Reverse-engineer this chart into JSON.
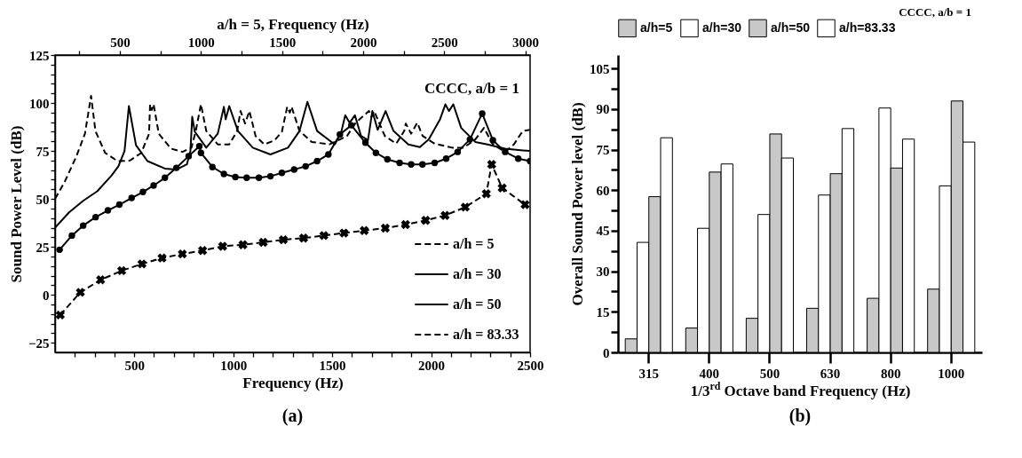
{
  "chart_data": [
    {
      "type": "line",
      "xlabel": "Frequency (Hz)",
      "ylabel": "Sound Power Level (dB)",
      "x2label": "a/h = 5, Frequency (Hz)",
      "xlim": [
        100,
        2500
      ],
      "xticks": [
        {
          "value": 200,
          "label": null
        },
        {
          "value": 300,
          "label": null
        },
        {
          "value": 400,
          "label": null
        },
        500,
        {
          "value": 600,
          "label": null
        },
        {
          "value": 700,
          "label": null
        },
        {
          "value": 800,
          "label": null
        },
        {
          "value": 900,
          "label": null
        },
        1000,
        {
          "value": 1100,
          "label": null
        },
        {
          "value": 1200,
          "label": null
        },
        {
          "value": 1300,
          "label": null
        },
        {
          "value": 1400,
          "label": null
        },
        1500,
        {
          "value": 1600,
          "label": null
        },
        {
          "value": 1700,
          "label": null
        },
        {
          "value": 1800,
          "label": null
        },
        {
          "value": 1900,
          "label": null
        },
        2000,
        {
          "value": 2100,
          "label": null
        },
        {
          "value": 2200,
          "label": null
        },
        {
          "value": 2300,
          "label": null
        },
        {
          "value": 2400,
          "label": null
        },
        2500
      ],
      "x2lim": [
        100,
        3030
      ],
      "x2ticks": [
        {
          "value": 250,
          "label": null
        },
        500,
        {
          "value": 750,
          "label": null
        },
        1000,
        {
          "value": 1250,
          "label": null
        },
        1500,
        {
          "value": 1750,
          "label": null
        },
        2000,
        {
          "value": 2250,
          "label": null
        },
        2500,
        {
          "value": 2750,
          "label": null
        },
        3000
      ],
      "ylim": [
        -30,
        125
      ],
      "yticks": [
        -25,
        {
          "value": -20,
          "label": null
        },
        {
          "value": -15,
          "label": null
        },
        {
          "value": -10,
          "label": null
        },
        {
          "value": -5,
          "label": null
        },
        0,
        {
          "value": 5,
          "label": null
        },
        {
          "value": 10,
          "label": null
        },
        {
          "value": 15,
          "label": null
        },
        {
          "value": 20,
          "label": null
        },
        25,
        {
          "value": 30,
          "label": null
        },
        {
          "value": 35,
          "label": null
        },
        {
          "value": 40,
          "label": null
        },
        {
          "value": 45,
          "label": null
        },
        50,
        {
          "value": 55,
          "label": null
        },
        {
          "value": 60,
          "label": null
        },
        {
          "value": 65,
          "label": null
        },
        {
          "value": 70,
          "label": null
        },
        75,
        {
          "value": 80,
          "label": null
        },
        {
          "value": 85,
          "label": null
        },
        {
          "value": 90,
          "label": null
        },
        {
          "value": 95,
          "label": null
        },
        100,
        {
          "value": 105,
          "label": null
        },
        {
          "value": 110,
          "label": null
        },
        {
          "value": 115,
          "label": null
        },
        {
          "value": 120,
          "label": null
        },
        125
      ],
      "legend": "bottom right",
      "annotations": [
        "CCCC, a/b = 1",
        "(a)"
      ],
      "series": [
        {
          "name": "a/h = 5",
          "color": "#000000",
          "axis": "x2",
          "line_style": "dashed",
          "marker": "cross",
          "x": [
            132,
            256,
            381,
            511,
            636,
            760,
            885,
            1010,
            1134,
            1259,
            1384,
            1508,
            1633,
            1758,
            1882,
            2007,
            2137,
            2262,
            2386,
            2506,
            2630,
            2760,
            2793,
            2858,
            2999
          ],
          "values": [
            -10.5,
            1.3,
            7.8,
            12.6,
            16.1,
            19.2,
            21.3,
            23.1,
            25.3,
            26.1,
            27.4,
            28.7,
            29.6,
            30.9,
            32.2,
            33.5,
            34.8,
            36.6,
            38.8,
            41.4,
            45.7,
            52.7,
            68,
            55.7,
            47
          ]
        },
        {
          "name": "a/h = 30",
          "color": "#000000",
          "line_style": "solid",
          "marker": "circle",
          "x": [
            123,
            185,
            242,
            305,
            367,
            425,
            487,
            544,
            598,
            655,
            713,
            775,
            829,
            837,
            895,
            953,
            1011,
            1068,
            1130,
            1188,
            1246,
            1308,
            1366,
            1424,
            1481,
            1539,
            1597,
            1668,
            1721,
            1779,
            1841,
            1899,
            1956,
            2018,
            2076,
            2134,
            2196,
            2258,
            2312,
            2374,
            2440,
            2500
          ],
          "values": [
            23.5,
            30.9,
            36.1,
            40.5,
            44,
            47,
            50.5,
            53.6,
            57,
            61,
            66.2,
            72.3,
            77.5,
            74,
            66.6,
            63,
            61.4,
            61,
            61,
            61.8,
            63.6,
            65.3,
            67,
            69.7,
            73.2,
            83.6,
            88.4,
            79.3,
            74,
            70.6,
            68.8,
            68,
            68,
            68.8,
            71,
            74.5,
            81,
            94.5,
            80.6,
            74.5,
            71,
            69.7
          ]
        },
        {
          "name": "a/h = 50",
          "color": "#000000",
          "line_style": "solid",
          "marker": "none",
          "x": [
            100,
            171,
            242,
            313,
            384,
            420,
            451,
            473,
            509,
            567,
            655,
            713,
            766,
            784,
            793,
            806,
            864,
            922,
            953,
            962,
            980,
            1024,
            1099,
            1188,
            1277,
            1335,
            1375,
            1424,
            1513,
            1544,
            1566,
            1588,
            1615,
            1646,
            1681,
            1703,
            1730,
            1770,
            1810,
            1885,
            1943,
            1988,
            2045,
            2072,
            2090,
            2112,
            2152,
            2223,
            2285,
            2374,
            2463,
            2500
          ],
          "values": [
            35,
            43,
            49,
            54,
            62,
            67,
            75,
            98.4,
            78,
            69.7,
            65.8,
            65.3,
            68,
            75,
            92.8,
            85,
            76.7,
            84,
            98,
            91.5,
            98.4,
            85.4,
            76.7,
            73.2,
            76.7,
            85.4,
            100.6,
            85.4,
            78.4,
            84,
            93.6,
            89.7,
            93.6,
            82.8,
            80.6,
            95.8,
            86,
            95.8,
            85.4,
            78.4,
            77,
            81,
            91.5,
            99.3,
            95.8,
            99.3,
            87,
            79.7,
            78.4,
            76.2,
            75.3,
            75
          ]
        },
        {
          "name": "a/h = 83.33",
          "color": "#000000",
          "line_style": "dashed",
          "marker": "none",
          "x": [
            100,
            149,
            207,
            251,
            282,
            304,
            353,
            416,
            478,
            536,
            575,
            580,
            589,
            598,
            624,
            686,
            744,
            789,
            811,
            837,
            864,
            922,
            980,
            1020,
            1037,
            1060,
            1082,
            1113,
            1157,
            1210,
            1246,
            1273,
            1286,
            1295,
            1335,
            1397,
            1486,
            1575,
            1619,
            1686,
            1699,
            1712,
            1766,
            1824,
            1864,
            1872,
            1899,
            1930,
            1957,
            2018,
            2107,
            2165,
            2223,
            2267,
            2312,
            2374,
            2418,
            2463,
            2500
          ],
          "values": [
            50,
            59,
            72,
            84,
            103.7,
            85.4,
            74,
            69.7,
            70,
            74,
            84,
            99.3,
            96.3,
            99.3,
            84,
            76.2,
            74.5,
            76.7,
            85.4,
            99.3,
            85.4,
            78.4,
            78.4,
            85.4,
            95.8,
            89.3,
            95.8,
            82.8,
            78.4,
            80.6,
            85,
            98,
            95,
            98,
            85.4,
            79.7,
            78.4,
            82.8,
            89.7,
            95.8,
            92.8,
            95.8,
            82.8,
            78.8,
            85.4,
            89.3,
            84,
            89.7,
            82.8,
            78.8,
            76.7,
            76.7,
            81,
            87,
            78.4,
            74.5,
            78.4,
            85.4,
            86
          ]
        }
      ]
    },
    {
      "type": "bar",
      "xlabel": "1/3$^{rd}$ Octave band Frequency (Hz)",
      "ylabel": "Overall Sound Power level (dB)",
      "categories": [
        "315",
        "400",
        "500",
        "630",
        "800",
        "1000"
      ],
      "ylim": [
        0,
        110
      ],
      "yticks": [
        0,
        {
          "value": 7.5,
          "label": null
        },
        15,
        {
          "value": 22.5,
          "label": null
        },
        30,
        {
          "value": 37.5,
          "label": null
        },
        45,
        {
          "value": 52.5,
          "label": null
        },
        60,
        {
          "value": 67.5,
          "label": null
        },
        75,
        {
          "value": 82.5,
          "label": null
        },
        90,
        {
          "value": 97.5,
          "label": null
        },
        105
      ],
      "legend": "top",
      "annotations": [
        "CCCC, a/b = 1",
        "(b)"
      ],
      "series": [
        {
          "name": "a/h=5",
          "color": "#c8c8c8",
          "values": [
            5,
            9,
            12.6,
            16.3,
            20,
            23.4
          ]
        },
        {
          "name": "a/h=30",
          "color": "#ffffff",
          "values": [
            40.7,
            45.9,
            51,
            58.2,
            90.4,
            61.6
          ]
        },
        {
          "name": "a/h=50",
          "color": "#c8c8c8",
          "values": [
            57.6,
            66.7,
            80.8,
            66.1,
            68.2,
            93
          ]
        },
        {
          "name": "a/h=83.33",
          "color": "#ffffff",
          "values": [
            79.4,
            69.7,
            71.9,
            82.8,
            78.9,
            77.8
          ]
        }
      ]
    }
  ]
}
